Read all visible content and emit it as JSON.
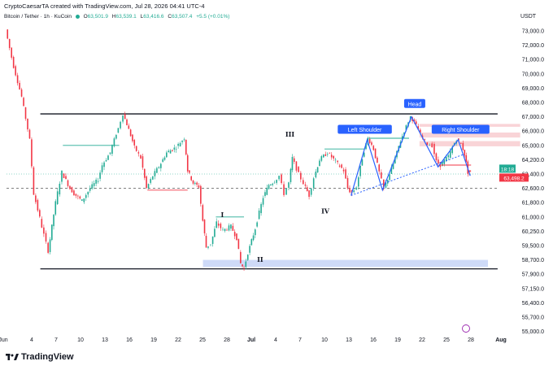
{
  "header": {
    "author_line": "CryptoCaesarTA created with TradingView.com, Jul 28, 2026 04:41 UTC-4"
  },
  "legend": {
    "symbol": "Bitcoin / Tether · 1h · KuCoin",
    "open_label": "O",
    "open": "63,501.9",
    "high_label": "H",
    "high": "63,539.1",
    "low_label": "L",
    "low": "63,416.6",
    "close_label": "C",
    "close": "63,507.4",
    "change": "+5.5 (+0.01%)"
  },
  "currency": "USDT",
  "footer": {
    "brand": "TradingView"
  },
  "colors": {
    "up": "#22ab94",
    "down": "#f23645",
    "wave": "#2962ff",
    "zone": "#c9d6f7",
    "supply": "#f8c9cd",
    "price_tag": "#f23645",
    "timer_tag": "#22ab94"
  },
  "chart_data": {
    "type": "candlestick",
    "y_ticks": [
      "73,000.0",
      "72,000.0",
      "71,000.0",
      "70,000.0",
      "69,000.0",
      "68,000.0",
      "67,000.0",
      "66,000.0",
      "65,000.0",
      "64,200.0",
      "63,400.0",
      "62,600.0",
      "61,800.0",
      "61,000.0",
      "60,250.0",
      "59,500.0",
      "58,700.0",
      "57,900.0",
      "57,150.0",
      "56,400.0",
      "55,700.0",
      "55,000.0"
    ],
    "x_ticks": [
      "Jun",
      "4",
      "7",
      "10",
      "13",
      "16",
      "19",
      "22",
      "25",
      "28",
      "Jul",
      "4",
      "7",
      "10",
      "13",
      "16",
      "19",
      "22",
      "25",
      "28",
      "Aug"
    ],
    "current_price": "63,498.2",
    "timer": "18:18",
    "series_path": [
      [
        0,
        73100
      ],
      [
        1,
        70500
      ],
      [
        2,
        68400
      ],
      [
        3,
        65400
      ],
      [
        3.5,
        62300
      ],
      [
        4.5,
        60500
      ],
      [
        5.3,
        59200
      ],
      [
        6.2,
        61800
      ],
      [
        7,
        63500
      ],
      [
        8,
        62600
      ],
      [
        8.5,
        62300
      ],
      [
        9.5,
        61900
      ],
      [
        10.5,
        62600
      ],
      [
        11.5,
        63100
      ],
      [
        12,
        63900
      ],
      [
        13,
        64600
      ],
      [
        14,
        66200
      ],
      [
        14.6,
        67200
      ],
      [
        15.3,
        66100
      ],
      [
        16,
        64900
      ],
      [
        16.8,
        64300
      ],
      [
        17.5,
        62600
      ],
      [
        18.3,
        63300
      ],
      [
        19.3,
        64000
      ],
      [
        20,
        64600
      ],
      [
        21.2,
        64900
      ],
      [
        22.2,
        65500
      ],
      [
        22.6,
        63600
      ],
      [
        23.3,
        62900
      ],
      [
        24,
        62700
      ],
      [
        24.5,
        60800
      ],
      [
        24.9,
        59400
      ],
      [
        25.5,
        59600
      ],
      [
        26.2,
        60700
      ],
      [
        27,
        60300
      ],
      [
        28,
        60500
      ],
      [
        28.7,
        59900
      ],
      [
        29.2,
        58500
      ],
      [
        29.6,
        58200
      ],
      [
        30.1,
        59100
      ],
      [
        31,
        60400
      ],
      [
        32,
        62100
      ],
      [
        32.7,
        62800
      ],
      [
        33.4,
        63000
      ],
      [
        34,
        63300
      ],
      [
        34.6,
        62300
      ],
      [
        35.2,
        62900
      ],
      [
        35.6,
        64300
      ],
      [
        36.4,
        63400
      ],
      [
        37,
        62900
      ],
      [
        37.7,
        62200
      ],
      [
        38.3,
        63200
      ],
      [
        39,
        64200
      ],
      [
        40,
        64600
      ],
      [
        41,
        64100
      ],
      [
        42,
        63600
      ],
      [
        42.5,
        62600
      ],
      [
        43,
        62300
      ],
      [
        43.6,
        62700
      ],
      [
        44.3,
        64300
      ],
      [
        45,
        65500
      ],
      [
        45.7,
        64800
      ],
      [
        46.4,
        63500
      ],
      [
        47,
        62600
      ],
      [
        47.7,
        63400
      ],
      [
        48.6,
        64600
      ],
      [
        49.5,
        66000
      ],
      [
        50.3,
        67000
      ],
      [
        51,
        66400
      ],
      [
        51.8,
        65500
      ],
      [
        52.4,
        65100
      ],
      [
        53,
        65000
      ],
      [
        53.5,
        64100
      ],
      [
        54,
        63900
      ],
      [
        55,
        64400
      ],
      [
        56,
        65400
      ],
      [
        56.6,
        65100
      ],
      [
        57,
        64500
      ],
      [
        57.4,
        63500
      ],
      [
        57.7,
        63500
      ]
    ],
    "levels": {
      "resistance": 67200,
      "neckline_dashed": 62600,
      "support_line": 58200,
      "demand_zone": [
        58300,
        58700
      ]
    },
    "annotations": [
      {
        "label": "I",
        "x": 26.8,
        "y": 61000
      },
      {
        "label": "II",
        "x": 31.5,
        "y": 58600
      },
      {
        "label": "III",
        "x": 35.2,
        "y": 65600
      },
      {
        "label": "IV",
        "x": 39.6,
        "y": 61200
      },
      {
        "label": "Left Shoulder",
        "x": 44.5,
        "y": 66100,
        "boxed": true
      },
      {
        "label": "Head",
        "x": 50.7,
        "y": 67900,
        "boxed": true
      },
      {
        "label": "Right Shoulder",
        "x": 56.4,
        "y": 66100,
        "boxed": true
      }
    ]
  }
}
